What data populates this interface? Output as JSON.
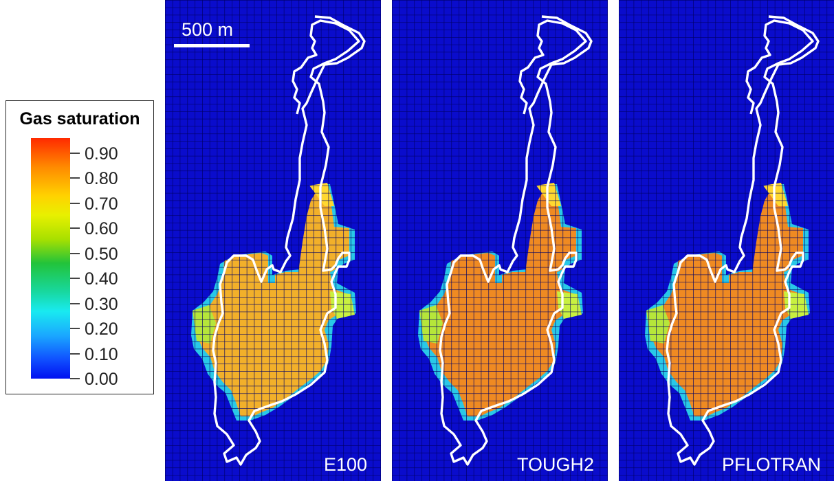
{
  "legend": {
    "title": "Gas saturation",
    "ticks": [
      "0.90",
      "0.80",
      "0.70",
      "0.60",
      "0.50",
      "0.40",
      "0.30",
      "0.20",
      "0.10",
      "0.00"
    ]
  },
  "scale_bar": {
    "label": "500 m"
  },
  "panels": [
    {
      "label": "E100"
    },
    {
      "label": "TOUGH2"
    },
    {
      "label": "PFLOTRAN"
    }
  ],
  "colors": {
    "background_grid": "#0a0cbf",
    "grid_lines": "#000080",
    "outline": "#ffffff"
  }
}
